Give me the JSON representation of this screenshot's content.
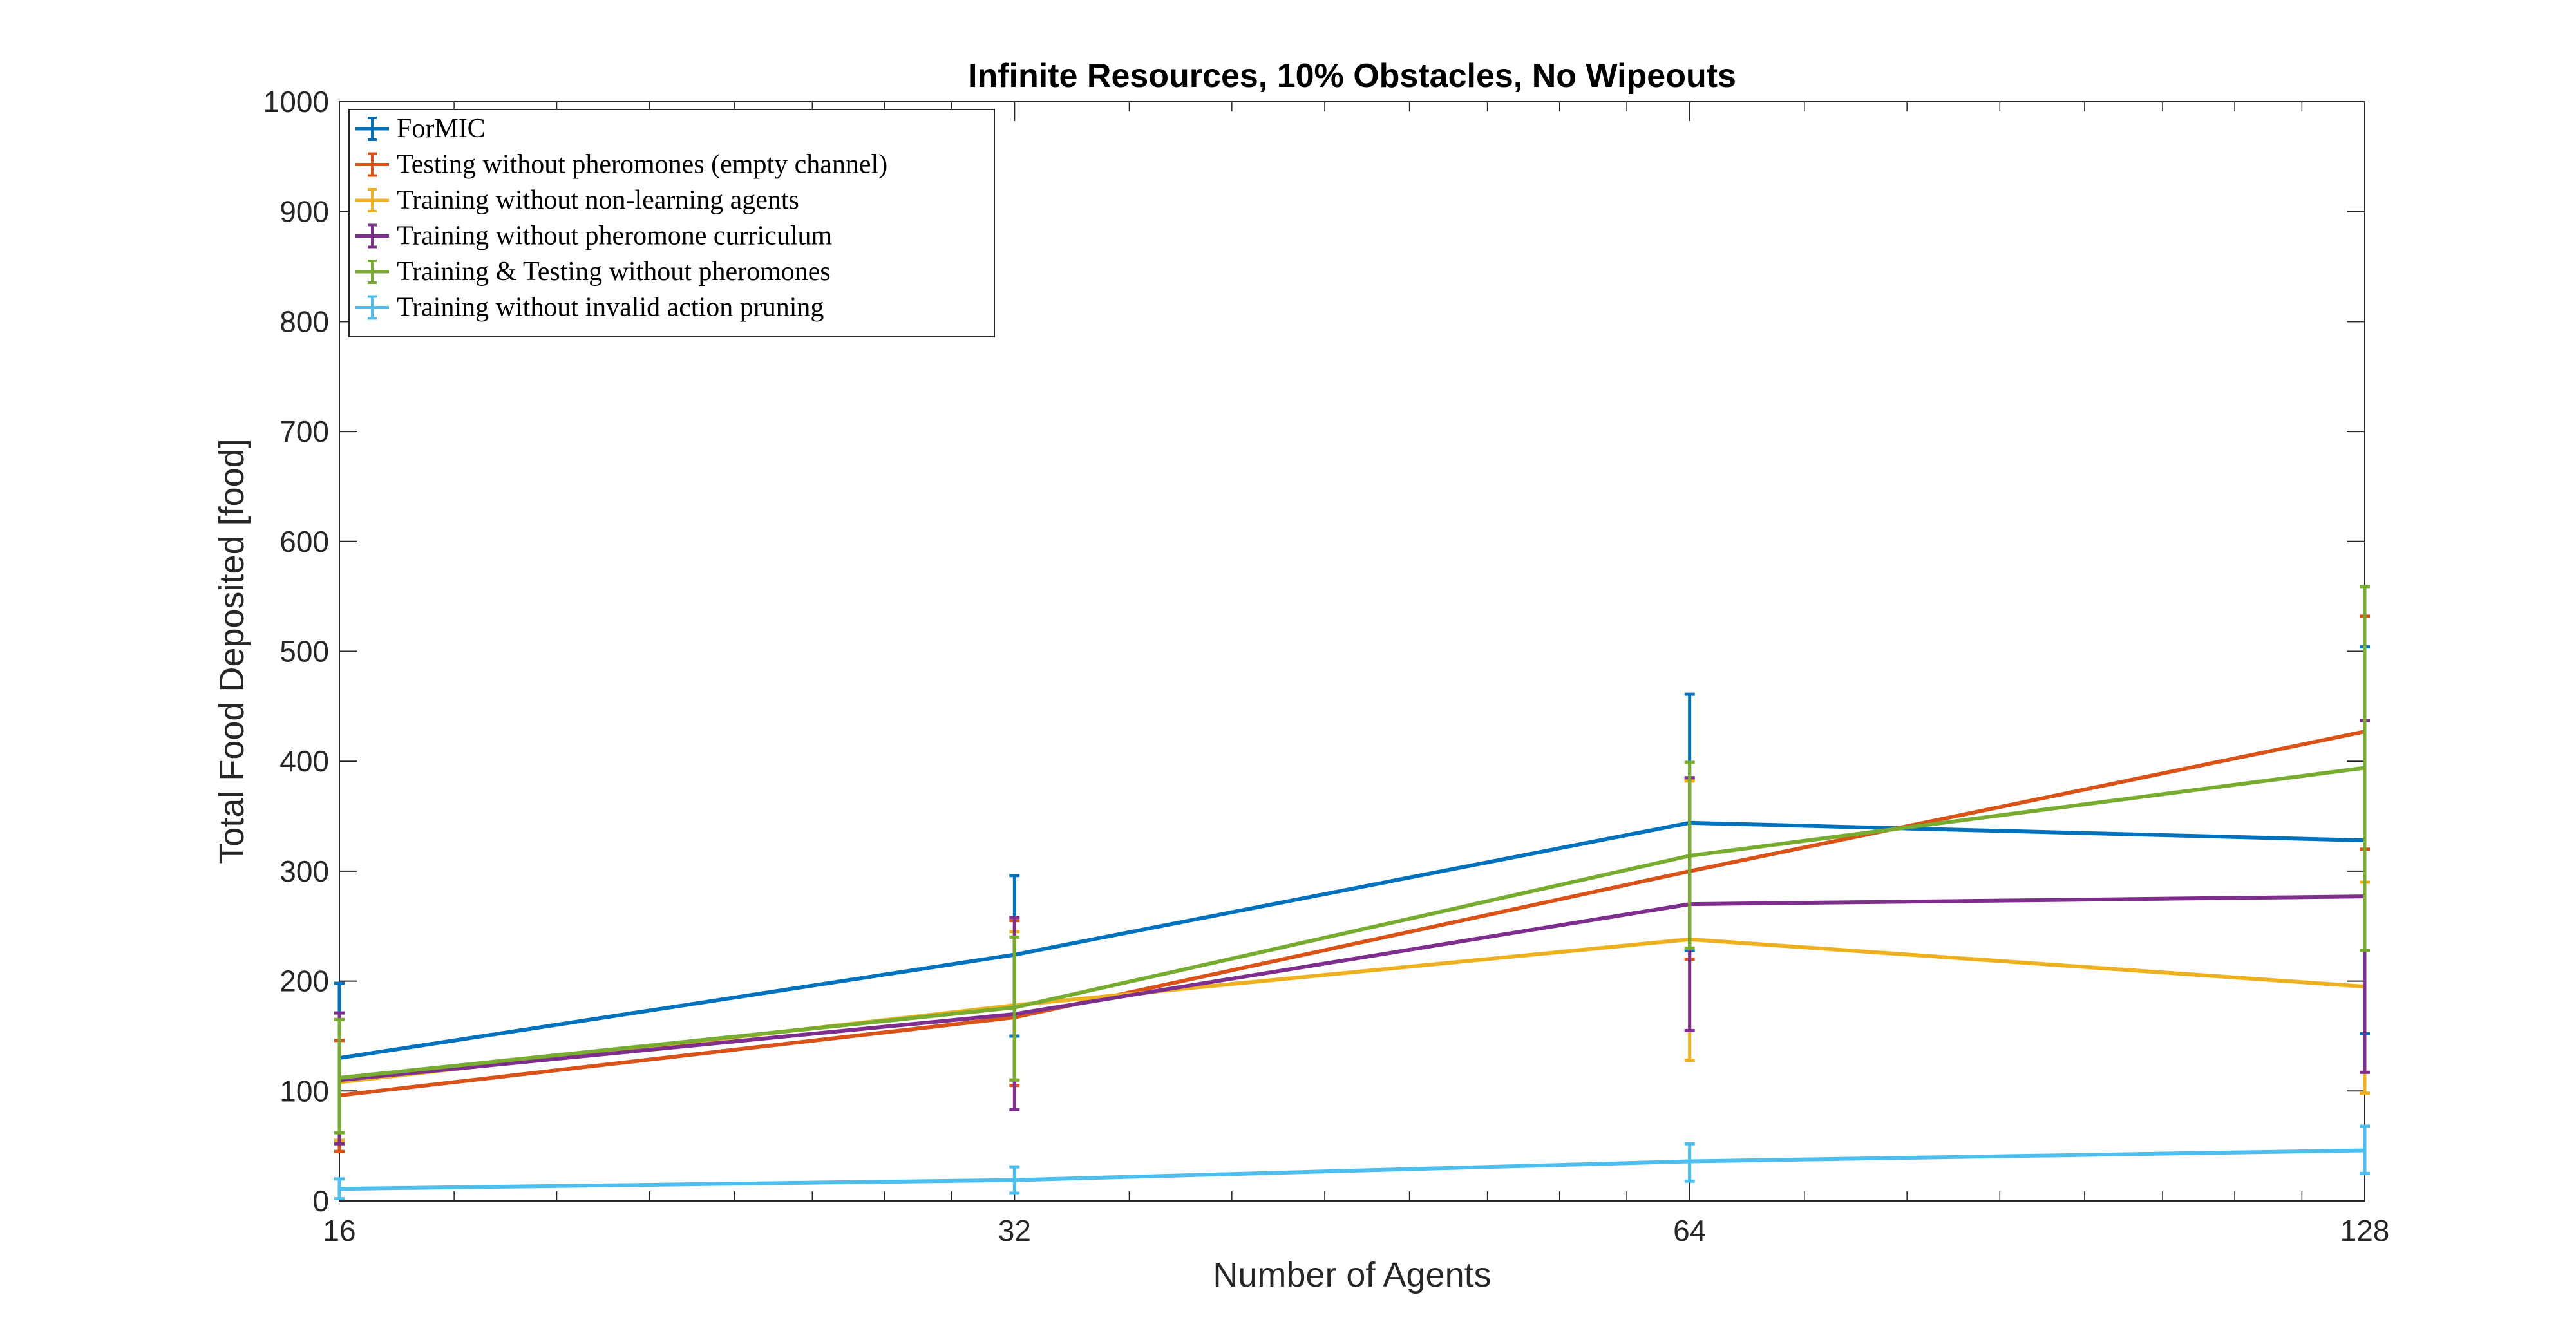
{
  "chart_data": {
    "type": "line",
    "title": "Infinite Resources, 10% Obstacles, No Wipeouts",
    "xlabel": "Number of Agents",
    "ylabel": "Total Food Deposited [food]",
    "x": [
      16,
      32,
      64,
      128
    ],
    "x_scale": "log2",
    "xlim": [
      16,
      128
    ],
    "ylim": [
      0,
      1000
    ],
    "xticks": [
      "16",
      "32",
      "64",
      "128"
    ],
    "yticks": [
      0,
      100,
      200,
      300,
      400,
      500,
      600,
      700,
      800,
      900,
      1000
    ],
    "grid": false,
    "legend_position": "top-left",
    "series": [
      {
        "name": "ForMIC",
        "color": "#0072BD",
        "values": [
          130,
          224,
          344,
          328
        ],
        "err_low": [
          55,
          150,
          228,
          152
        ],
        "err_high": [
          198,
          296,
          461,
          504
        ]
      },
      {
        "name": "Testing without pheromones (empty channel)",
        "color": "#D95319",
        "values": [
          96,
          167,
          300,
          427
        ],
        "err_low": [
          45,
          105,
          220,
          320
        ],
        "err_high": [
          146,
          255,
          384,
          532
        ]
      },
      {
        "name": "Training without non-learning agents",
        "color": "#EDB120",
        "values": [
          108,
          178,
          238,
          195
        ],
        "err_low": [
          55,
          110,
          128,
          98
        ],
        "err_high": [
          165,
          245,
          382,
          290
        ]
      },
      {
        "name": "Training without pheromone curriculum",
        "color": "#7E2F8E",
        "values": [
          110,
          170,
          270,
          277
        ],
        "err_low": [
          52,
          83,
          155,
          117
        ],
        "err_high": [
          171,
          258,
          385,
          437
        ]
      },
      {
        "name": "Training & Testing without pheromones",
        "color": "#77AC30",
        "values": [
          112,
          176,
          314,
          394
        ],
        "err_low": [
          62,
          110,
          230,
          228
        ],
        "err_high": [
          165,
          240,
          399,
          559
        ]
      },
      {
        "name": "Training without invalid action pruning",
        "color": "#4DBEEE",
        "values": [
          11,
          19,
          36,
          46
        ],
        "err_low": [
          2,
          7,
          18,
          25
        ],
        "err_high": [
          20,
          31,
          52,
          68
        ]
      }
    ]
  }
}
